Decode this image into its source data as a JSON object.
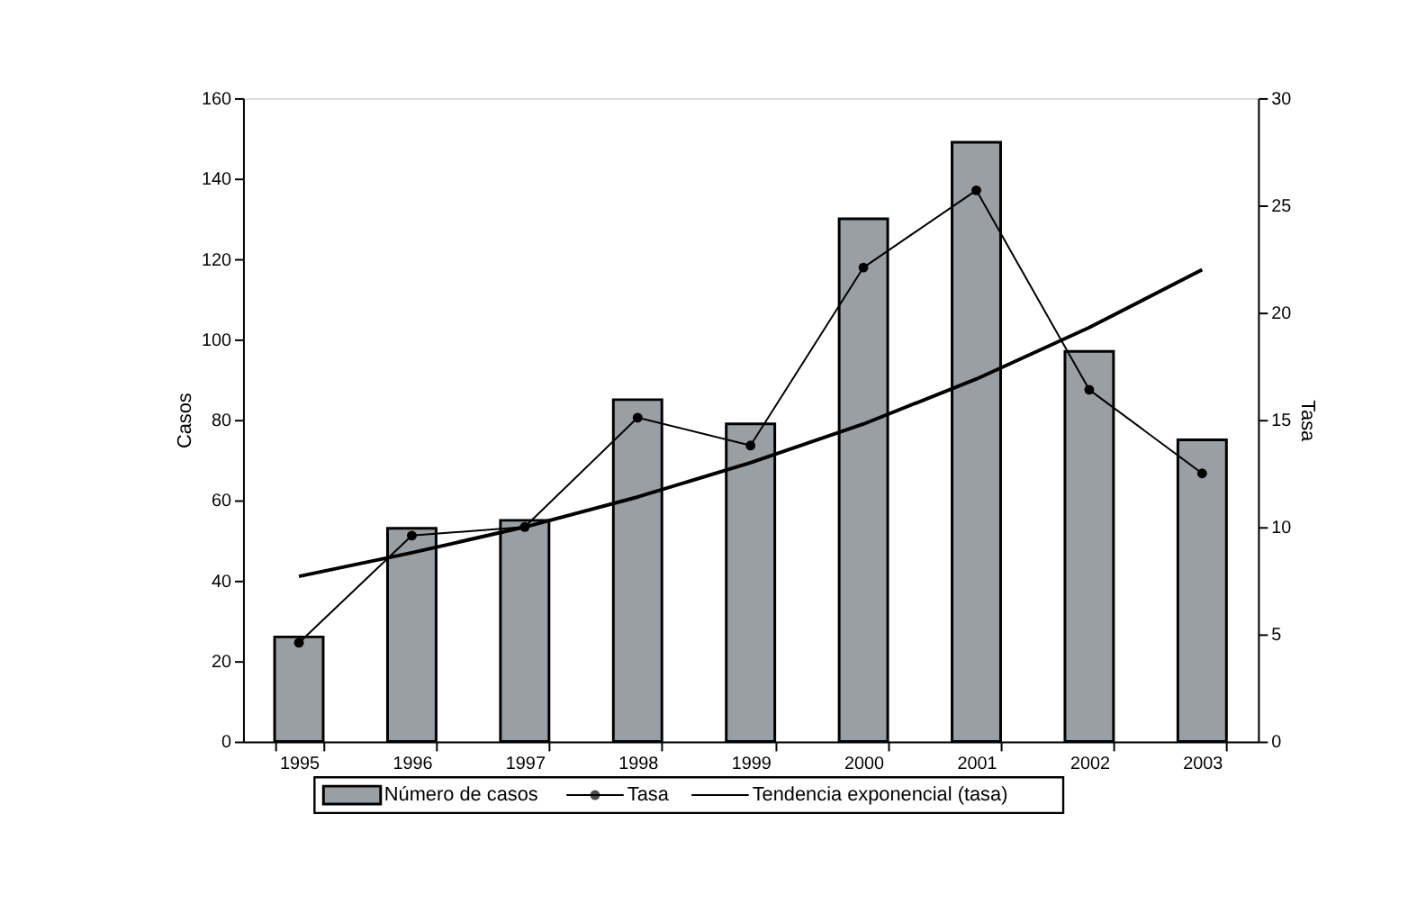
{
  "chart_data": {
    "type": "bar",
    "categories": [
      "1995",
      "1996",
      "1997",
      "1998",
      "1999",
      "2000",
      "2001",
      "2002",
      "2003"
    ],
    "ylabel": "Casos",
    "y2label": "Tasa",
    "series": [
      {
        "name": "Número de casos",
        "color": "#9a9fa3",
        "values": [
          26,
          53,
          55,
          85,
          79,
          130,
          149,
          97,
          75
        ]
      },
      {
        "name": "Tasa",
        "type": "line",
        "axis": "y2",
        "marker": "circle",
        "color": "#000000",
        "values": [
          4.6,
          9.6,
          10.0,
          15.1,
          13.8,
          22.1,
          25.7,
          16.4,
          12.5
        ]
      },
      {
        "name": "Tendencia exponencial (tasa)",
        "type": "line",
        "axis": "y2",
        "marker": "none",
        "color": "#000000",
        "values": [
          7.7,
          8.8,
          10.0,
          11.4,
          13.0,
          14.8,
          16.9,
          19.3,
          22.0
        ]
      }
    ],
    "ylim": [
      0,
      160
    ],
    "yticks": [
      0,
      20,
      40,
      60,
      80,
      100,
      120,
      140,
      160
    ],
    "y2lim": [
      0,
      30
    ],
    "y2ticks": [
      0,
      5,
      10,
      15,
      20,
      25,
      30
    ],
    "grid": false,
    "legend": "bottom"
  }
}
